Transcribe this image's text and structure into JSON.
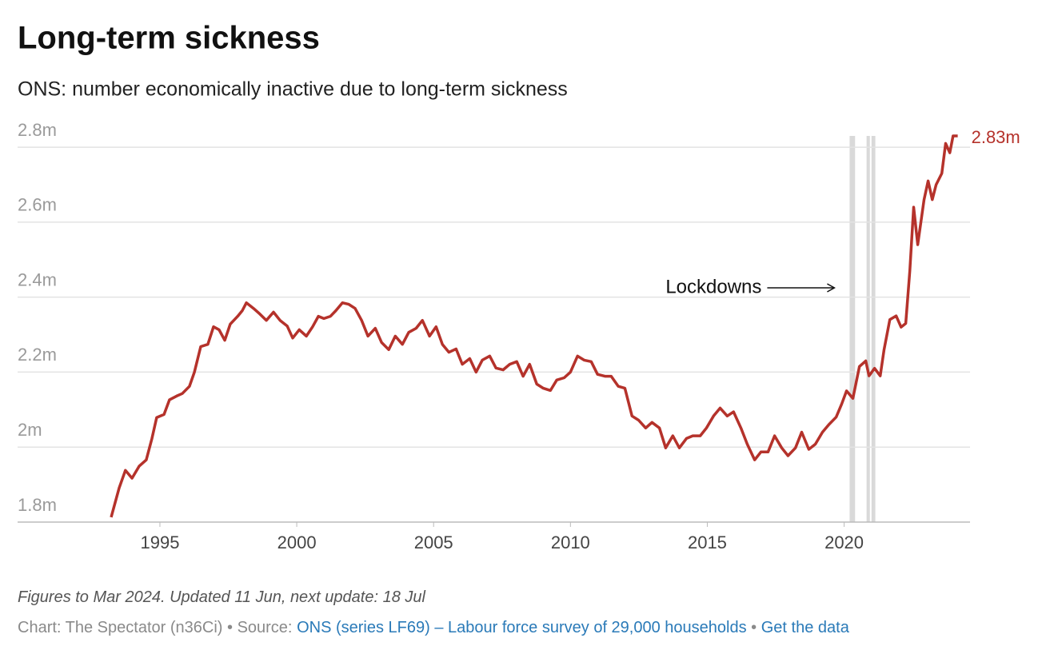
{
  "chart_data": {
    "type": "line",
    "title": "Long-term sickness",
    "subtitle": "ONS: number economically inactive due to long-term sickness",
    "x": [
      1993.22,
      1993.51,
      1993.74,
      1993.98,
      1994.24,
      1994.5,
      1994.71,
      1994.88,
      1995.15,
      1995.35,
      1995.61,
      1995.82,
      1996.08,
      1996.26,
      1996.49,
      1996.75,
      1996.96,
      1997.16,
      1997.37,
      1997.57,
      1997.84,
      1998.01,
      1998.16,
      1998.42,
      1998.65,
      1998.89,
      1999.15,
      1999.39,
      1999.65,
      1999.85,
      2000.09,
      2000.35,
      2000.58,
      2000.79,
      2000.99,
      2001.23,
      2001.43,
      2001.67,
      2001.9,
      2002.13,
      2002.37,
      2002.6,
      2002.87,
      2003.1,
      2003.36,
      2003.6,
      2003.86,
      2004.09,
      2004.36,
      2004.59,
      2004.85,
      2005.09,
      2005.32,
      2005.56,
      2005.82,
      2006.05,
      2006.32,
      2006.55,
      2006.78,
      2007.05,
      2007.28,
      2007.54,
      2007.78,
      2008.04,
      2008.27,
      2008.51,
      2008.77,
      2009.01,
      2009.27,
      2009.5,
      2009.77,
      2010.0,
      2010.26,
      2010.5,
      2010.76,
      2010.99,
      2011.26,
      2011.49,
      2011.75,
      2011.99,
      2012.25,
      2012.49,
      2012.75,
      2012.98,
      2013.25,
      2013.48,
      2013.74,
      2013.98,
      2014.24,
      2014.47,
      2014.74,
      2014.97,
      2015.23,
      2015.47,
      2015.73,
      2015.96,
      2016.23,
      2016.46,
      2016.73,
      2016.96,
      2017.22,
      2017.46,
      2017.72,
      2017.95,
      2018.22,
      2018.45,
      2018.71,
      2018.95,
      2019.21,
      2019.44,
      2019.71,
      2019.91,
      2020.09,
      2020.32,
      2020.56,
      2020.79,
      2020.91,
      2021.11,
      2021.32,
      2021.46,
      2021.67,
      2021.9,
      2022.08,
      2022.25,
      2022.4,
      2022.54,
      2022.69,
      2022.92,
      2023.07,
      2023.22,
      2023.36,
      2023.57,
      2023.71,
      2023.86,
      2023.98,
      2024.15
    ],
    "values": [
      1.813,
      1.891,
      1.938,
      1.917,
      1.949,
      1.966,
      2.023,
      2.079,
      2.087,
      2.126,
      2.136,
      2.143,
      2.162,
      2.2,
      2.268,
      2.274,
      2.321,
      2.313,
      2.285,
      2.328,
      2.349,
      2.364,
      2.385,
      2.37,
      2.355,
      2.338,
      2.36,
      2.338,
      2.323,
      2.291,
      2.313,
      2.296,
      2.321,
      2.349,
      2.343,
      2.349,
      2.364,
      2.385,
      2.381,
      2.37,
      2.338,
      2.296,
      2.317,
      2.279,
      2.26,
      2.296,
      2.274,
      2.306,
      2.317,
      2.338,
      2.296,
      2.321,
      2.274,
      2.253,
      2.262,
      2.221,
      2.236,
      2.2,
      2.232,
      2.243,
      2.211,
      2.206,
      2.221,
      2.228,
      2.189,
      2.221,
      2.168,
      2.157,
      2.151,
      2.179,
      2.185,
      2.2,
      2.243,
      2.232,
      2.228,
      2.194,
      2.189,
      2.189,
      2.162,
      2.157,
      2.083,
      2.072,
      2.051,
      2.066,
      2.051,
      1.998,
      2.03,
      1.998,
      2.023,
      2.03,
      2.03,
      2.051,
      2.083,
      2.104,
      2.083,
      2.094,
      2.051,
      2.008,
      1.966,
      1.987,
      1.987,
      2.03,
      1.998,
      1.977,
      1.998,
      2.04,
      1.994,
      2.008,
      2.04,
      2.06,
      2.08,
      2.115,
      2.15,
      2.13,
      2.215,
      2.23,
      2.19,
      2.21,
      2.19,
      2.26,
      2.34,
      2.35,
      2.32,
      2.33,
      2.47,
      2.64,
      2.54,
      2.66,
      2.71,
      2.66,
      2.7,
      2.73,
      2.81,
      2.785,
      2.83,
      2.83
    ],
    "color": "#b5322b",
    "xlim": [
      1989.8,
      2024.6
    ],
    "ylim": [
      1.8,
      2.83
    ],
    "xticks": [
      1995,
      2000,
      2005,
      2010,
      2015,
      2020
    ],
    "yticks": [
      {
        "value": 1.8,
        "label": "1.8m"
      },
      {
        "value": 2,
        "label": "2m"
      },
      {
        "value": 2.2,
        "label": "2.2m"
      },
      {
        "value": 2.4,
        "label": "2.4m"
      },
      {
        "value": 2.6,
        "label": "2.6m"
      },
      {
        "value": 2.8,
        "label": "2.8m"
      }
    ],
    "grid": true,
    "shaded_ranges": [
      [
        2020.2,
        2020.4
      ],
      [
        2020.82,
        2020.94
      ],
      [
        2021.0,
        2021.14
      ]
    ],
    "shaded_label": "Lockdowns",
    "end_label": {
      "value": 2.83,
      "label": "2.83m"
    }
  },
  "footer": {
    "note": "Figures to Mar 2024. Updated 11 Jun, next update: 18 Jul",
    "credit": "Chart: The Spectator (n36Ci)",
    "separator": "•",
    "source_prefix": "Source:",
    "source": "ONS (series LF69) – Labour force survey of 29,000 households",
    "get_data": "Get the data"
  }
}
